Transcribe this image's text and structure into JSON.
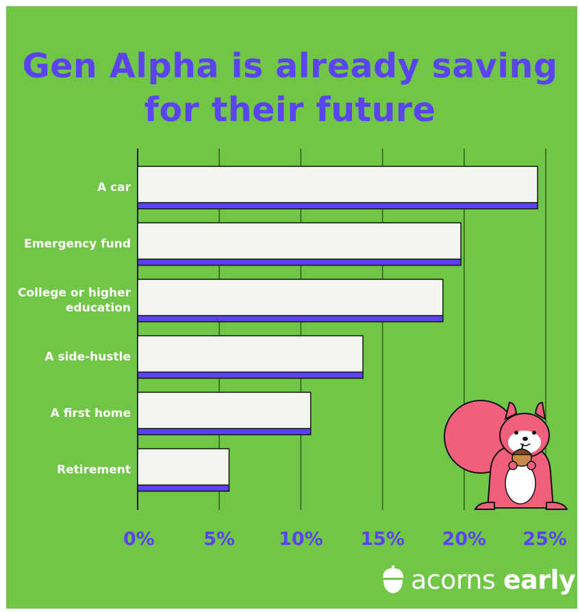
{
  "title_line1": "Gen Alpha is already saving",
  "title_line2": "for their future",
  "brand": {
    "word1": "acorns",
    "word2": "early"
  },
  "colors": {
    "background": "#72c647",
    "accent": "#5a44f0",
    "bar_fill": "#f4f4ee",
    "grid": "#2f5a14",
    "mascot": "#f0607a"
  },
  "chart_data": {
    "type": "bar",
    "orientation": "horizontal",
    "title": "Gen Alpha is already saving for their future",
    "categories": [
      "A car",
      "Emergency fund",
      "College or higher education",
      "A side-hustle",
      "A first home",
      "Retirement"
    ],
    "category_lines": [
      [
        "A car"
      ],
      [
        "Emergency fund"
      ],
      [
        "College or higher",
        "education"
      ],
      [
        "A side-hustle"
      ],
      [
        "A first home"
      ],
      [
        "Retirement"
      ]
    ],
    "values": [
      24.5,
      19.8,
      18.7,
      13.8,
      10.6,
      5.6
    ],
    "xlim": [
      0,
      25
    ],
    "xticks": [
      0,
      5,
      10,
      15,
      20,
      25
    ],
    "xtick_labels": [
      "0%",
      "5%",
      "10%",
      "15%",
      "20%",
      "25%"
    ],
    "xlabel": "",
    "ylabel": "",
    "grid": true
  }
}
